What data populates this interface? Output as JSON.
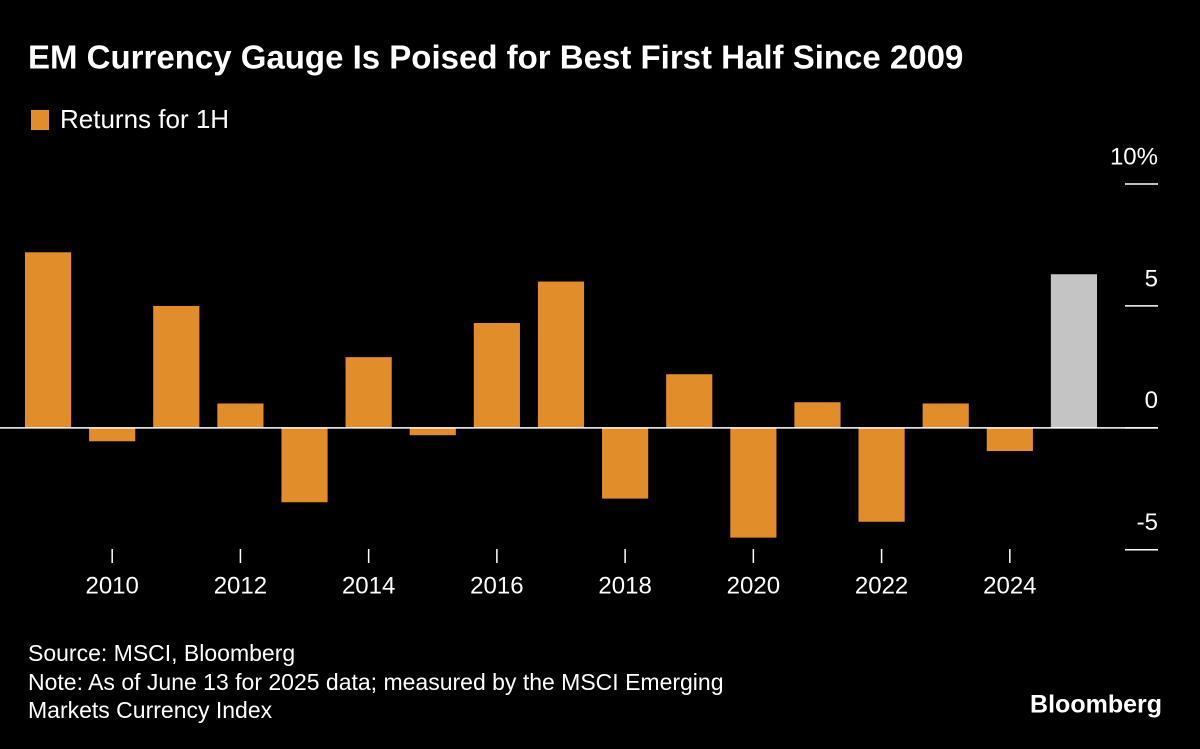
{
  "chart_data": {
    "type": "bar",
    "title": "EM Currency Gauge Is Poised for Best First Half Since 2009",
    "legend": "Returns for 1H",
    "color": "#e08d2a",
    "categories": [
      null,
      "2010",
      null,
      "2012",
      null,
      "2014",
      null,
      "2016",
      null,
      "2018",
      null,
      "2020",
      null,
      "2022",
      null,
      "2024",
      null
    ],
    "values": [
      7.2,
      -0.55,
      5.0,
      1.0,
      -3.05,
      2.9,
      -0.3,
      4.3,
      6.0,
      -2.9,
      2.2,
      -4.5,
      1.05,
      -3.85,
      1.0,
      -0.95,
      6.3
    ],
    "bar_colors": [
      "#e08d2a",
      "#e08d2a",
      "#e08d2a",
      "#e08d2a",
      "#e08d2a",
      "#e08d2a",
      "#e08d2a",
      "#e08d2a",
      "#e08d2a",
      "#e08d2a",
      "#e08d2a",
      "#e08d2a",
      "#e08d2a",
      "#e08d2a",
      "#e08d2a",
      "#e08d2a",
      "#c4c4c4"
    ],
    "ylim": [
      -5.5,
      10
    ],
    "yticks": [
      -5,
      0,
      5,
      {
        "value": 10,
        "label": "10%"
      }
    ],
    "source": "Source: MSCI, Bloomberg",
    "note": [
      "Note: As of June 13 for 2025 data; measured by the MSCI Emerging",
      "Markets Currency Index"
    ],
    "brand": "Bloomberg"
  }
}
